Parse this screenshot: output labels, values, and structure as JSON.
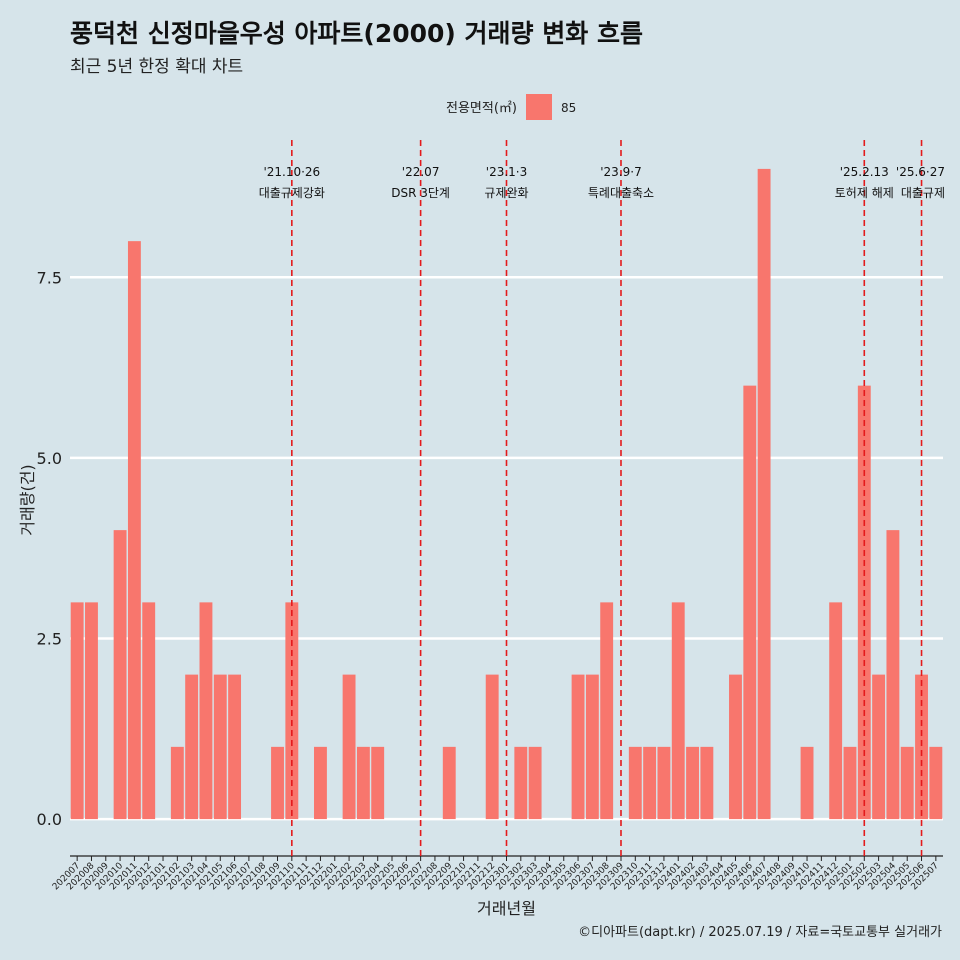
{
  "title": "풍덕천 신정마을우성 아파트(2000) 거래량 변화 흐름",
  "subtitle": "최근 5년 한정 확대 차트",
  "caption": "©디아파트(dapt.kr) / 2025.07.19 / 자료=국토교통부 실거래가",
  "colors": {
    "background": "#d6e4ea",
    "bar": "#f8766d",
    "gridline": "#ffffff",
    "event_line": "#e31a1c"
  },
  "chart_data": {
    "type": "bar",
    "xlabel": "거래년월",
    "ylabel": "거래량(건)",
    "ylim": [
      -0.4,
      9.4
    ],
    "yticks": [
      "0.0",
      "2.5",
      "5.0",
      "7.5"
    ],
    "ytick_values": [
      0,
      2.5,
      5,
      7.5
    ],
    "legend": {
      "title": "전용면적(㎡)",
      "position": "top",
      "series_label": "85"
    },
    "categories": [
      "202007",
      "202008",
      "202009",
      "202010",
      "202011",
      "202012",
      "202101",
      "202102",
      "202103",
      "202104",
      "202105",
      "202106",
      "202107",
      "202108",
      "202109",
      "202110",
      "202111",
      "202112",
      "202201",
      "202202",
      "202203",
      "202204",
      "202205",
      "202206",
      "202207",
      "202208",
      "202209",
      "202210",
      "202211",
      "202212",
      "202301",
      "202302",
      "202303",
      "202304",
      "202305",
      "202306",
      "202307",
      "202308",
      "202309",
      "202310",
      "202311",
      "202312",
      "202401",
      "202402",
      "202403",
      "202404",
      "202405",
      "202406",
      "202407",
      "202408",
      "202409",
      "202410",
      "202411",
      "202412",
      "202501",
      "202502",
      "202503",
      "202504",
      "202505",
      "202506",
      "202507"
    ],
    "series": [
      {
        "name": "85",
        "values": [
          3,
          3,
          0,
          4,
          8,
          3,
          0,
          1,
          2,
          3,
          2,
          2,
          0,
          0,
          1,
          3,
          0,
          1,
          0,
          2,
          1,
          1,
          0,
          0,
          0,
          0,
          1,
          0,
          0,
          2,
          0,
          1,
          1,
          0,
          0,
          2,
          2,
          3,
          0,
          1,
          1,
          1,
          3,
          1,
          1,
          0,
          2,
          6,
          9,
          0,
          0,
          1,
          0,
          3,
          1,
          6,
          2,
          4,
          1,
          2,
          1
        ]
      }
    ],
    "annotations": [
      {
        "x": "202110",
        "date": "'21.10·26",
        "label": "대출규제강화"
      },
      {
        "x": "202207",
        "date": "'22.07",
        "label": "DSR 3단계"
      },
      {
        "x": "202301",
        "date": "'23.1·3",
        "label": "규제완화"
      },
      {
        "x": "202309",
        "date": "'23.9·7",
        "label": "특례대출축소"
      },
      {
        "x": "202502",
        "date": "'25.2.13",
        "label": "토허제 해제"
      },
      {
        "x": "202506",
        "date": "'25.6·27",
        "label": "대출규제"
      }
    ]
  }
}
